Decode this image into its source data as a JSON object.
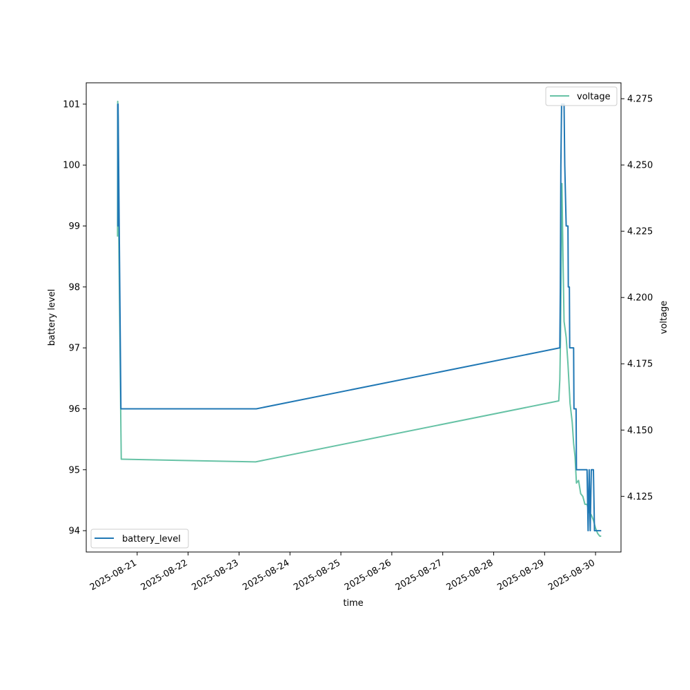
{
  "chart_data": {
    "type": "line",
    "xlabel": "time",
    "ylabel": "battery level",
    "y2label": "voltage",
    "x_type": "date",
    "xlim": [
      "2025-08-20T00:00",
      "2025-08-30T12:00"
    ],
    "ylim": [
      93.65,
      101.35
    ],
    "y2lim": [
      4.104,
      4.281
    ],
    "x_ticks": [
      "2025-08-21",
      "2025-08-22",
      "2025-08-23",
      "2025-08-24",
      "2025-08-25",
      "2025-08-26",
      "2025-08-27",
      "2025-08-28",
      "2025-08-29",
      "2025-08-30"
    ],
    "y_ticks": [
      94,
      95,
      96,
      97,
      98,
      99,
      100,
      101
    ],
    "y2_ticks": [
      4.125,
      4.15,
      4.175,
      4.2,
      4.225,
      4.25,
      4.275
    ],
    "y2_tick_labels": [
      "4.125",
      "4.150",
      "4.175",
      "4.200",
      "4.225",
      "4.250",
      "4.275"
    ],
    "grid": false,
    "series": [
      {
        "name": "battery_level",
        "axis": "left",
        "color": "#1f77b4",
        "legend_position": "lower-left",
        "points": [
          [
            "2025-08-20T14:50",
            101
          ],
          [
            "2025-08-20T14:55",
            99
          ],
          [
            "2025-08-20T15:00",
            101
          ],
          [
            "2025-08-20T16:20",
            96
          ],
          [
            "2025-08-23T08:10",
            96
          ],
          [
            "2025-08-29T07:10",
            97
          ],
          [
            "2025-08-29T07:25",
            98
          ],
          [
            "2025-08-29T07:40",
            100
          ],
          [
            "2025-08-29T08:00",
            101
          ],
          [
            "2025-08-29T09:10",
            101
          ],
          [
            "2025-08-29T09:30",
            100
          ],
          [
            "2025-08-29T10:10",
            99
          ],
          [
            "2025-08-29T11:00",
            99
          ],
          [
            "2025-08-29T11:10",
            98
          ],
          [
            "2025-08-29T11:40",
            98
          ],
          [
            "2025-08-29T11:50",
            97
          ],
          [
            "2025-08-29T13:40",
            97
          ],
          [
            "2025-08-29T13:50",
            96
          ],
          [
            "2025-08-29T14:50",
            96
          ],
          [
            "2025-08-29T15:00",
            95
          ],
          [
            "2025-08-29T20:00",
            95
          ],
          [
            "2025-08-29T20:30",
            94
          ],
          [
            "2025-08-29T21:00",
            95
          ],
          [
            "2025-08-29T21:30",
            94
          ],
          [
            "2025-08-29T22:00",
            95
          ],
          [
            "2025-08-29T23:00",
            95
          ],
          [
            "2025-08-29T23:30",
            94
          ],
          [
            "2025-08-30T02:40",
            94
          ]
        ]
      },
      {
        "name": "voltage",
        "axis": "right",
        "color": "#66c2a5",
        "legend_position": "upper-right",
        "points": [
          [
            "2025-08-20T14:45",
            4.223
          ],
          [
            "2025-08-20T14:50",
            4.274
          ],
          [
            "2025-08-20T15:00",
            4.268
          ],
          [
            "2025-08-20T15:20",
            4.224
          ],
          [
            "2025-08-20T16:20",
            4.15
          ],
          [
            "2025-08-20T16:30",
            4.139
          ],
          [
            "2025-08-20T16:50",
            4.139
          ],
          [
            "2025-08-23T07:50",
            4.138
          ],
          [
            "2025-08-29T06:40",
            4.161
          ],
          [
            "2025-08-29T07:10",
            4.169
          ],
          [
            "2025-08-29T07:30",
            4.185
          ],
          [
            "2025-08-29T07:50",
            4.215
          ],
          [
            "2025-08-29T08:10",
            4.243
          ],
          [
            "2025-08-29T08:40",
            4.215
          ],
          [
            "2025-08-29T09:10",
            4.191
          ],
          [
            "2025-08-29T10:10",
            4.185
          ],
          [
            "2025-08-29T11:00",
            4.175
          ],
          [
            "2025-08-29T12:00",
            4.16
          ],
          [
            "2025-08-29T13:00",
            4.153
          ],
          [
            "2025-08-29T13:40",
            4.145
          ],
          [
            "2025-08-29T14:20",
            4.14
          ],
          [
            "2025-08-29T15:00",
            4.13
          ],
          [
            "2025-08-29T16:00",
            4.131
          ],
          [
            "2025-08-29T17:00",
            4.126
          ],
          [
            "2025-08-29T18:00",
            4.125
          ],
          [
            "2025-08-29T19:00",
            4.122
          ],
          [
            "2025-08-29T20:00",
            4.122
          ],
          [
            "2025-08-29T21:00",
            4.119
          ],
          [
            "2025-08-29T22:00",
            4.118
          ],
          [
            "2025-08-29T23:00",
            4.116
          ],
          [
            "2025-08-30T00:00",
            4.113
          ],
          [
            "2025-08-30T01:00",
            4.111
          ],
          [
            "2025-08-30T02:00",
            4.11
          ],
          [
            "2025-08-30T02:40",
            4.11
          ]
        ]
      }
    ]
  }
}
